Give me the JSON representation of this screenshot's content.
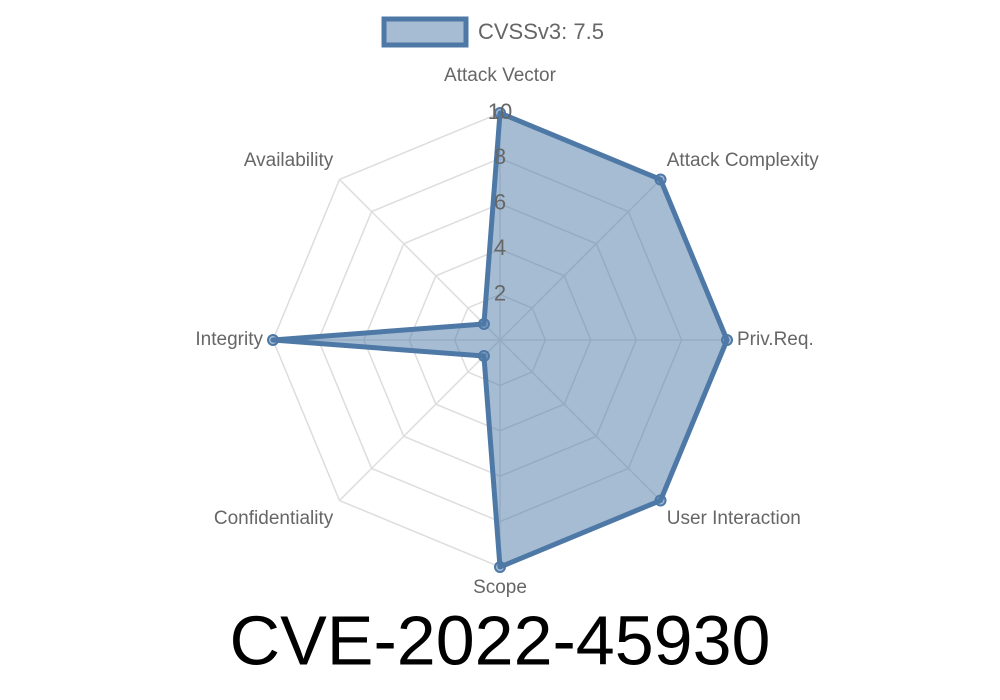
{
  "chart_data": {
    "type": "radar",
    "title": "CVE-2022-45930",
    "categories": [
      "Attack Vector",
      "Attack Complexity",
      "Priv.Req.",
      "User Interaction",
      "Scope",
      "Confidentiality",
      "Integrity",
      "Availability"
    ],
    "series": [
      {
        "name": "CVSSv3: 7.5",
        "color": "#4e79a7",
        "values": [
          10,
          10,
          10,
          10,
          10,
          1,
          10,
          1
        ]
      }
    ],
    "ylim": [
      0,
      10
    ],
    "yticks": [
      2,
      4,
      6,
      8,
      10
    ],
    "grid": true,
    "legend": "top"
  }
}
